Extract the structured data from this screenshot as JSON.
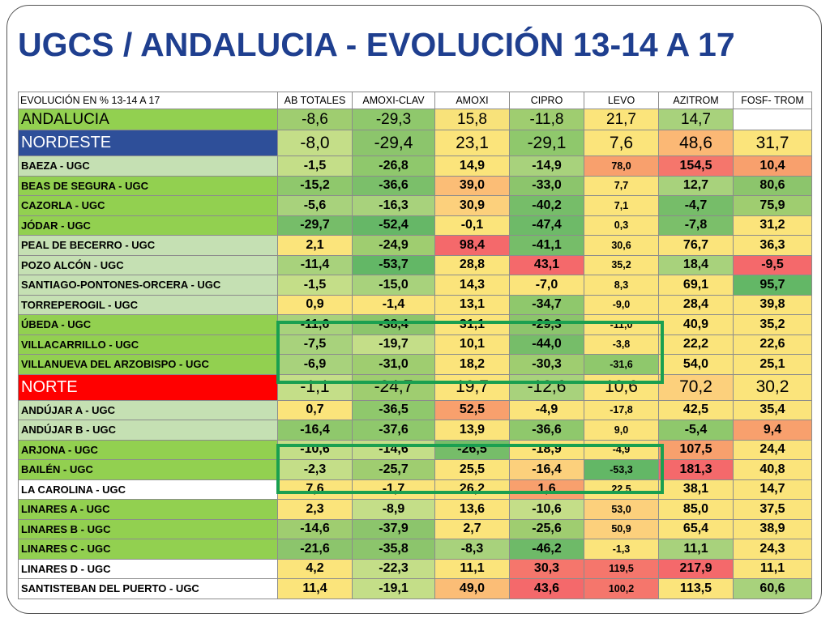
{
  "title": "UGCS / ANDALUCIA - EVOLUCIÓN 13-14 A 17",
  "colors": {
    "title": "#1f3f8f",
    "nordeste_bg": "#2e4f99",
    "norte_bg": "#ff0000",
    "highlight_box": "#1aa050"
  },
  "table": {
    "headers": [
      "EVOLUCIÓN EN % 13-14 A 17",
      "AB TOTALES",
      "AMOXI-CLAV",
      "AMOXI",
      "CIPRO",
      "LEVO",
      "AZITROM",
      "FOSF- TROM"
    ],
    "rows": [
      {
        "name": "ANDALUCIA",
        "kind": "sum",
        "name_bg": "#92d050",
        "name_color": "#000000",
        "values": [
          "-8,6",
          "-29,3",
          "15,8",
          "-11,8",
          "21,7",
          "14,7",
          ""
        ],
        "bgs": [
          "#9fcd70",
          "#8fc86c",
          "#f8e27a",
          "#9fcd70",
          "#fbe47b",
          "#a8d27c",
          "#ffffff"
        ]
      },
      {
        "name": "NORDESTE",
        "kind": "big",
        "name_bg": "#2e4f99",
        "name_color": "#ffffff",
        "values": [
          "-8,0",
          "-29,4",
          "23,1",
          "-29,1",
          "7,6",
          "48,6",
          "31,7"
        ],
        "bgs": [
          "#c4de88",
          "#8cc56c",
          "#fbe47b",
          "#8fc86c",
          "#fbe47b",
          "#fbb875",
          "#fbe47b"
        ]
      },
      {
        "name": "BAEZA - UGC",
        "kind": "ugc",
        "name_bg": "#c5e0b3",
        "values": [
          "-1,5",
          "-26,8",
          "14,9",
          "-14,9",
          "78,0",
          "154,5",
          "10,4"
        ],
        "bgs": [
          "#c4de88",
          "#8fc86c",
          "#fbe47b",
          "#a8d27c",
          "#f8a06d",
          "#f5766c",
          "#f8a06d"
        ]
      },
      {
        "name": "BEAS DE SEGURA - UGC",
        "kind": "ugc",
        "name_bg": "#92d050",
        "values": [
          "-15,2",
          "-36,6",
          "39,0",
          "-33,0",
          "7,7",
          "12,7",
          "80,6"
        ],
        "bgs": [
          "#8fc86c",
          "#7bbf6a",
          "#fbbd76",
          "#8cc56c",
          "#fbe47b",
          "#a8d27c",
          "#8cc56c"
        ]
      },
      {
        "name": "CAZORLA - UGC",
        "kind": "ugc",
        "name_bg": "#92d050",
        "values": [
          "-5,6",
          "-16,3",
          "30,9",
          "-40,2",
          "7,1",
          "-4,7",
          "75,9"
        ],
        "bgs": [
          "#a8d27c",
          "#a8d27c",
          "#fcd07c",
          "#76bd69",
          "#fbe47b",
          "#76bd69",
          "#9fcd70"
        ]
      },
      {
        "name": "JÓDAR - UGC",
        "kind": "ugc",
        "name_bg": "#92d050",
        "values": [
          "-29,7",
          "-52,4",
          "-0,1",
          "-47,4",
          "0,3",
          "-7,8",
          "31,2"
        ],
        "bgs": [
          "#76bd69",
          "#66b767",
          "#fbe47b",
          "#6eba68",
          "#fbe47b",
          "#7bbf6a",
          "#fbe47b"
        ]
      },
      {
        "name": "PEAL DE BECERRO - UGC",
        "kind": "ugc",
        "name_bg": "#c5e0b3",
        "values": [
          "2,1",
          "-24,9",
          "98,4",
          "-41,1",
          "30,6",
          "76,7",
          "36,3"
        ],
        "bgs": [
          "#fbe47b",
          "#9fcd70",
          "#f4696b",
          "#76bd69",
          "#fbe47b",
          "#fbe47b",
          "#fbe47b"
        ]
      },
      {
        "name": "POZO ALCÓN - UGC",
        "kind": "ugc",
        "name_bg": "#c5e0b3",
        "values": [
          "-11,4",
          "-53,7",
          "28,8",
          "43,1",
          "35,2",
          "18,4",
          "-9,5"
        ],
        "bgs": [
          "#a8d27c",
          "#63b766",
          "#fbe47b",
          "#f4696b",
          "#fbe47b",
          "#a8d27c",
          "#f4696b"
        ]
      },
      {
        "name": "SANTIAGO-PONTONES-ORCERA - UGC",
        "kind": "ugc",
        "name_bg": "#c5e0b3",
        "values": [
          "-1,5",
          "-15,0",
          "14,3",
          "-7,0",
          "8,3",
          "69,1",
          "95,7"
        ],
        "bgs": [
          "#c4de88",
          "#a8d27c",
          "#fbe47b",
          "#fbe47b",
          "#fbe47b",
          "#fbe47b",
          "#63b766"
        ]
      },
      {
        "name": "TORREPEROGIL - UGC",
        "kind": "ugc",
        "name_bg": "#c5e0b3",
        "values": [
          "0,9",
          "-1,4",
          "13,1",
          "-34,7",
          "-9,0",
          "28,4",
          "39,8"
        ],
        "bgs": [
          "#fbe47b",
          "#fbe47b",
          "#fbe47b",
          "#8fc86c",
          "#fbe47b",
          "#fbe47b",
          "#fbe47b"
        ]
      },
      {
        "name": "ÚBEDA - UGC",
        "kind": "ugc",
        "name_bg": "#92d050",
        "values": [
          "-11,6",
          "-38,4",
          "31,1",
          "-29,3",
          "-11,0",
          "40,9",
          "35,2"
        ],
        "bgs": [
          "#a8d27c",
          "#8cc56c",
          "#fbe47b",
          "#8cc56c",
          "#fbe47b",
          "#fbe47b",
          "#fbe47b"
        ]
      },
      {
        "name": "VILLACARRILLO - UGC",
        "kind": "ugc",
        "name_bg": "#92d050",
        "values": [
          "-7,5",
          "-19,7",
          "10,1",
          "-44,0",
          "-3,8",
          "22,2",
          "22,6"
        ],
        "bgs": [
          "#a8d27c",
          "#c4de88",
          "#fbe47b",
          "#76bd69",
          "#fbe47b",
          "#fbe47b",
          "#fbe47b"
        ]
      },
      {
        "name": "VILLANUEVA DEL ARZOBISPO - UGC",
        "kind": "ugc",
        "name_bg": "#92d050",
        "values": [
          "-6,9",
          "-31,0",
          "18,2",
          "-30,3",
          "-31,6",
          "54,0",
          "25,1"
        ],
        "bgs": [
          "#a8d27c",
          "#9fcd70",
          "#fbe47b",
          "#9fcd70",
          "#8fc86c",
          "#fbe47b",
          "#fbe47b"
        ]
      },
      {
        "name": "NORTE",
        "kind": "big",
        "name_bg": "#ff0000",
        "name_color": "#ffffff",
        "values": [
          "-1,1",
          "-24,7",
          "19,7",
          "-12,6",
          "10,6",
          "70,2",
          "30,2"
        ],
        "bgs": [
          "#c4de88",
          "#9fcd70",
          "#fbe47b",
          "#a8d27c",
          "#fbe47b",
          "#fcd07c",
          "#fbe47b"
        ]
      },
      {
        "name": "ANDÚJAR A - UGC",
        "kind": "ugc",
        "name_bg": "#c5e0b3",
        "values": [
          "0,7",
          "-36,5",
          "52,5",
          "-4,9",
          "-17,8",
          "42,5",
          "35,4"
        ],
        "bgs": [
          "#fbe47b",
          "#8fc86c",
          "#f8a06d",
          "#fbe47b",
          "#fbe47b",
          "#fbe47b",
          "#fbe47b"
        ]
      },
      {
        "name": "ANDÚJAR B - UGC",
        "kind": "ugc",
        "name_bg": "#c5e0b3",
        "values": [
          "-16,4",
          "-37,6",
          "13,9",
          "-36,6",
          "9,0",
          "-5,4",
          "9,4"
        ],
        "bgs": [
          "#8fc86c",
          "#8fc86c",
          "#fbe47b",
          "#8fc86c",
          "#fbe47b",
          "#8fc86c",
          "#f8a06d"
        ]
      },
      {
        "name": "ARJONA - UGC",
        "kind": "ugc",
        "name_bg": "#92d050",
        "values": [
          "-10,6",
          "-14,6",
          "-26,5",
          "-18,9",
          "-4,9",
          "107,5",
          "24,4"
        ],
        "bgs": [
          "#c4de88",
          "#c4de88",
          "#76bd69",
          "#fbe47b",
          "#fbe47b",
          "#f8a06d",
          "#fbe47b"
        ]
      },
      {
        "name": "BAILÉN - UGC",
        "kind": "ugc",
        "name_bg": "#92d050",
        "values": [
          "-2,3",
          "-25,7",
          "25,5",
          "-16,4",
          "-53,3",
          "181,3",
          "40,8"
        ],
        "bgs": [
          "#c4de88",
          "#9fcd70",
          "#fbe47b",
          "#fcd07c",
          "#63b766",
          "#f4696b",
          "#fbe47b"
        ]
      },
      {
        "name": "LA CAROLINA - UGC",
        "kind": "ugc",
        "name_bg": "#ffffff",
        "values": [
          "7,6",
          "-1,7",
          "26,2",
          "1,6",
          "22,5",
          "38,1",
          "14,7"
        ],
        "bgs": [
          "#fbe47b",
          "#fbe47b",
          "#fbe47b",
          "#f8a06d",
          "#fbe47b",
          "#fbe47b",
          "#fbe47b"
        ]
      },
      {
        "name": "LINARES A - UGC",
        "kind": "ugc",
        "name_bg": "#92d050",
        "values": [
          "2,3",
          "-8,9",
          "13,6",
          "-10,6",
          "53,0",
          "85,0",
          "37,5"
        ],
        "bgs": [
          "#fbe47b",
          "#c4de88",
          "#fbe47b",
          "#c4de88",
          "#fcd07c",
          "#fbe47b",
          "#fbe47b"
        ]
      },
      {
        "name": "LINARES B - UGC",
        "kind": "ugc",
        "name_bg": "#92d050",
        "values": [
          "-14,6",
          "-37,9",
          "2,7",
          "-25,6",
          "50,9",
          "65,4",
          "38,9"
        ],
        "bgs": [
          "#9fcd70",
          "#8cc56c",
          "#fbe47b",
          "#9fcd70",
          "#fcd07c",
          "#fbe47b",
          "#fbe47b"
        ]
      },
      {
        "name": "LINARES C - UGC",
        "kind": "ugc",
        "name_bg": "#92d050",
        "values": [
          "-21,6",
          "-35,8",
          "-8,3",
          "-46,2",
          "-1,3",
          "11,1",
          "24,3"
        ],
        "bgs": [
          "#8cc56c",
          "#8cc56c",
          "#a8d27c",
          "#6eba68",
          "#fbe47b",
          "#a8d27c",
          "#fbe47b"
        ]
      },
      {
        "name": "LINARES D - UGC",
        "kind": "ugc",
        "name_bg": "#ffffff",
        "values": [
          "4,2",
          "-22,3",
          "11,1",
          "30,3",
          "119,5",
          "217,9",
          "11,1"
        ],
        "bgs": [
          "#fbe47b",
          "#c4de88",
          "#fbe47b",
          "#f5766c",
          "#f5766c",
          "#f4696b",
          "#fbe47b"
        ]
      },
      {
        "name": "SANTISTEBAN DEL PUERTO - UGC",
        "kind": "ugc",
        "name_bg": "#ffffff",
        "values": [
          "11,4",
          "-19,1",
          "49,0",
          "43,6",
          "100,2",
          "113,5",
          "60,6"
        ],
        "bgs": [
          "#fbe47b",
          "#c4de88",
          "#fbbd76",
          "#f4696b",
          "#f5766c",
          "#fbe47b",
          "#a8d27c"
        ]
      }
    ]
  }
}
